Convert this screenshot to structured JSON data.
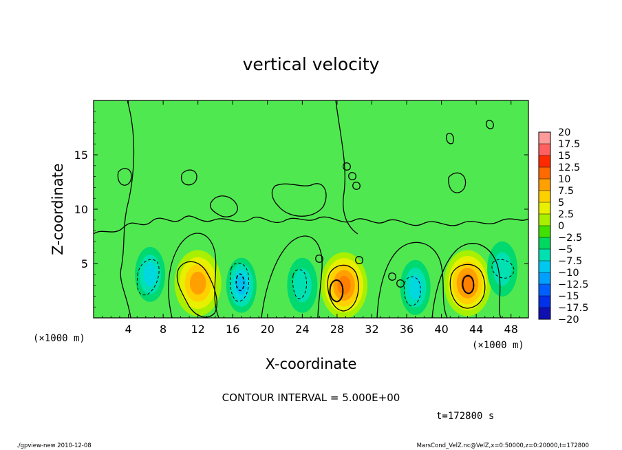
{
  "chart_data": {
    "type": "heatmap",
    "title": "vertical velocity",
    "xlabel": "X-coordinate",
    "ylabel": "Z-coordinate",
    "x_unit": "(×1000 m)",
    "y_unit": "(×1000 m)",
    "xlim": [
      0,
      50
    ],
    "ylim": [
      0,
      20
    ],
    "x_ticks": [
      4,
      8,
      12,
      16,
      20,
      24,
      28,
      32,
      36,
      40,
      44,
      48
    ],
    "y_ticks": [
      5,
      10,
      15
    ],
    "colorbar": {
      "labels": [
        "20",
        "17.5",
        "15",
        "12.5",
        "10",
        "7.5",
        "5",
        "2.5",
        "0",
        "−2.5",
        "−5",
        "−7.5",
        "−10",
        "−12.5",
        "−15",
        "−17.5",
        "−20"
      ],
      "colors": [
        "#ff9a9a",
        "#ff6060",
        "#ff2a00",
        "#ff6a00",
        "#ffa000",
        "#ffd000",
        "#e8f000",
        "#a8f000",
        "#40e000",
        "#00d860",
        "#00e0b0",
        "#00c8f0",
        "#00a0ff",
        "#0060ff",
        "#0030e8",
        "#1010b0",
        "#6a00c0"
      ]
    },
    "features": [
      {
        "x": 6.5,
        "z": 4.0,
        "w": -6
      },
      {
        "x": 12.0,
        "z": 3.2,
        "w": 9
      },
      {
        "x": 17.0,
        "z": 3.0,
        "w": -10
      },
      {
        "x": 24.0,
        "z": 3.0,
        "w": -5
      },
      {
        "x": 28.8,
        "z": 3.0,
        "w": 11
      },
      {
        "x": 37.0,
        "z": 2.8,
        "w": -6
      },
      {
        "x": 43.0,
        "z": 3.2,
        "w": 11
      },
      {
        "x": 47.0,
        "z": 4.5,
        "w": -3
      }
    ],
    "contour_interval": "CONTOUR INTERVAL = 5.000E+00",
    "time_label": "t=172800 s"
  },
  "footer": {
    "left": "./gpview-new   2010-12-08",
    "right": "MarsCond_VelZ.nc@VelZ,x=0:50000,z=0:20000,t=172800"
  }
}
